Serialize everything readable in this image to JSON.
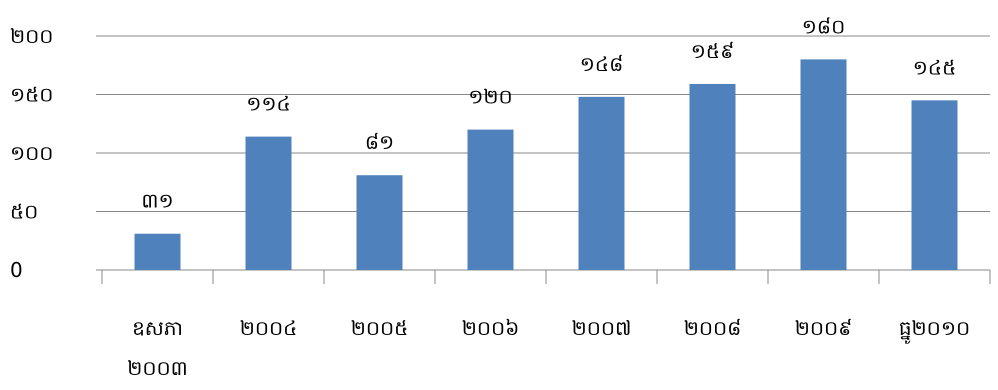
{
  "chart_data": {
    "type": "bar",
    "title": "",
    "xlabel": "",
    "ylabel": "",
    "ylim": [
      0,
      200
    ],
    "grid": true,
    "legend": "none",
    "y_ticks": [
      {
        "value": 0,
        "label": "0"
      },
      {
        "value": 50,
        "label": "៥០"
      },
      {
        "value": 100,
        "label": "១០០"
      },
      {
        "value": 150,
        "label": "១៥០"
      },
      {
        "value": 200,
        "label": "២០០"
      }
    ],
    "categories": [
      [
        "ឧសភា",
        "២០០៣"
      ],
      [
        "២០០៤"
      ],
      [
        "២០០៥"
      ],
      [
        "២០០៦"
      ],
      [
        "២០០៧"
      ],
      [
        "២០០៨"
      ],
      [
        "២០០៩"
      ],
      [
        "ធ្នូ២០១០"
      ]
    ],
    "values": [
      31,
      114,
      81,
      120,
      148,
      159,
      180,
      145
    ],
    "data_labels": [
      "៣១",
      "១១៤",
      "៨១",
      "១២០",
      "១៤៨",
      "១៥៩",
      "១៨០",
      "១៤៥"
    ],
    "bar_color": "#4f81bd",
    "grid_color": "#888888"
  }
}
